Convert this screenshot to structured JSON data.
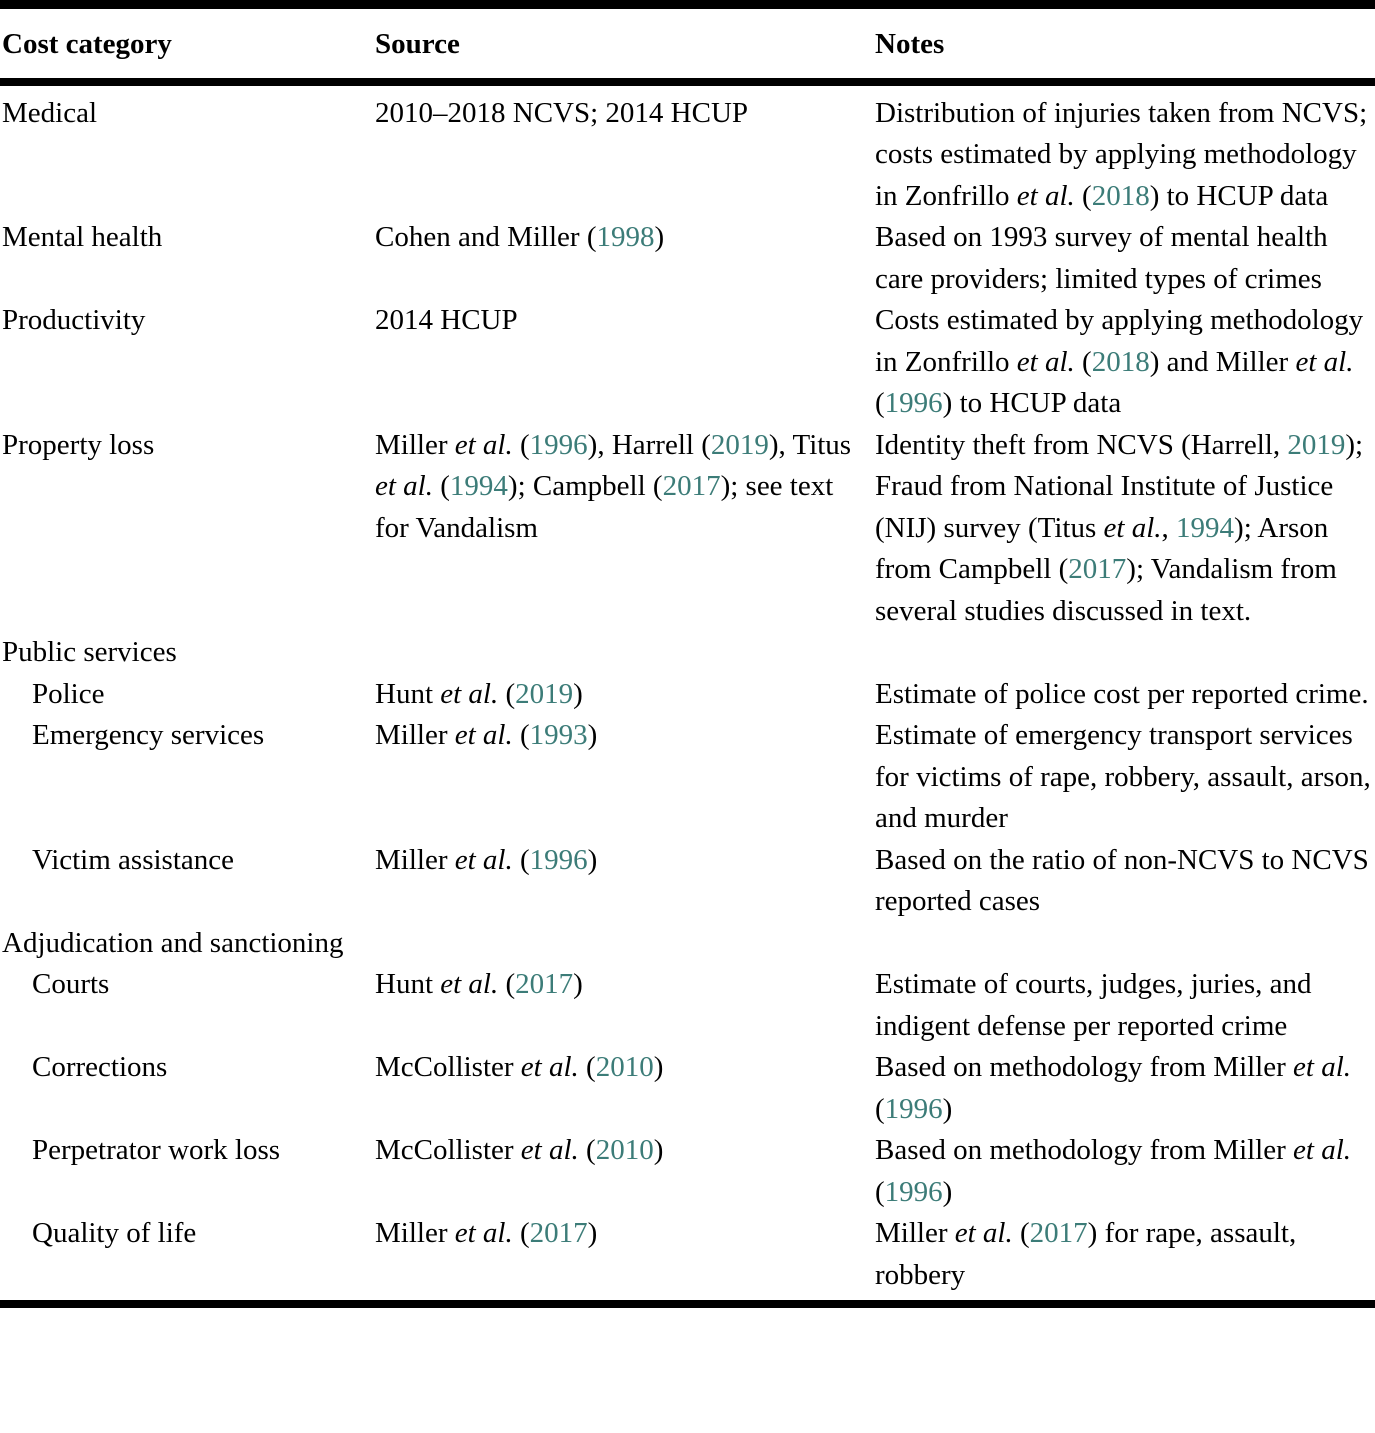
{
  "colors": {
    "citation": "#3c7c78",
    "text": "#000000",
    "rule": "#000000",
    "background": "#ffffff"
  },
  "table": {
    "columns": [
      "Cost category",
      "Source",
      "Notes"
    ],
    "rows": [
      {
        "category": "Medical",
        "indent": false,
        "section": false,
        "source": [
          {
            "t": "2010–2018 NCVS; 2014 HCUP"
          }
        ],
        "notes": [
          {
            "t": "Distribution of injuries taken from NCVS; costs estimated by applying methodology in Zonfrillo "
          },
          {
            "t": "et al.",
            "i": true
          },
          {
            "t": " ("
          },
          {
            "t": "2018",
            "c": true
          },
          {
            "t": ") to HCUP data"
          }
        ]
      },
      {
        "category": "Mental health",
        "indent": false,
        "section": false,
        "source": [
          {
            "t": "Cohen and Miller ("
          },
          {
            "t": "1998",
            "c": true
          },
          {
            "t": ")"
          }
        ],
        "notes": [
          {
            "t": "Based on 1993 survey of mental health care providers; limited types of crimes"
          }
        ]
      },
      {
        "category": "Productivity",
        "indent": false,
        "section": false,
        "source": [
          {
            "t": "2014 HCUP"
          }
        ],
        "notes": [
          {
            "t": "Costs estimated by applying methodology in Zonfrillo "
          },
          {
            "t": "et al.",
            "i": true
          },
          {
            "t": " ("
          },
          {
            "t": "2018",
            "c": true
          },
          {
            "t": ") and Miller "
          },
          {
            "t": "et al.",
            "i": true
          },
          {
            "t": " ("
          },
          {
            "t": "1996",
            "c": true
          },
          {
            "t": ") to HCUP data"
          }
        ]
      },
      {
        "category": "Property loss",
        "indent": false,
        "section": false,
        "source": [
          {
            "t": "Miller "
          },
          {
            "t": "et al.",
            "i": true
          },
          {
            "t": " ("
          },
          {
            "t": "1996",
            "c": true
          },
          {
            "t": "), Harrell ("
          },
          {
            "t": "2019",
            "c": true
          },
          {
            "t": "), Titus "
          },
          {
            "t": "et al.",
            "i": true
          },
          {
            "t": " ("
          },
          {
            "t": "1994",
            "c": true
          },
          {
            "t": "); Campbell ("
          },
          {
            "t": "2017",
            "c": true
          },
          {
            "t": "); see text for Vandalism"
          }
        ],
        "notes": [
          {
            "t": "Identity theft from NCVS (Harrell, "
          },
          {
            "t": "2019",
            "c": true
          },
          {
            "t": "); Fraud from National Institute of Justice (NIJ) survey (Titus "
          },
          {
            "t": "et al.",
            "i": true
          },
          {
            "t": ", "
          },
          {
            "t": "1994",
            "c": true
          },
          {
            "t": "); Arson from Campbell ("
          },
          {
            "t": "2017",
            "c": true
          },
          {
            "t": "); Vandalism from several studies discussed in text."
          }
        ]
      },
      {
        "category": "Public services",
        "indent": false,
        "section": true,
        "source": [],
        "notes": []
      },
      {
        "category": "Police",
        "indent": true,
        "section": false,
        "source": [
          {
            "t": "Hunt "
          },
          {
            "t": "et al.",
            "i": true
          },
          {
            "t": " ("
          },
          {
            "t": "2019",
            "c": true
          },
          {
            "t": ")"
          }
        ],
        "notes": [
          {
            "t": "Estimate of police cost per reported crime."
          }
        ]
      },
      {
        "category": "Emergency services",
        "indent": true,
        "section": false,
        "source": [
          {
            "t": "Miller "
          },
          {
            "t": "et al.",
            "i": true
          },
          {
            "t": " ("
          },
          {
            "t": "1993",
            "c": true
          },
          {
            "t": ")"
          }
        ],
        "notes": [
          {
            "t": "Estimate of emergency transport services for victims of rape, robbery, assault, arson, and murder"
          }
        ]
      },
      {
        "category": "Victim assistance",
        "indent": true,
        "section": false,
        "source": [
          {
            "t": "Miller "
          },
          {
            "t": "et al.",
            "i": true
          },
          {
            "t": " ("
          },
          {
            "t": "1996",
            "c": true
          },
          {
            "t": ")"
          }
        ],
        "notes": [
          {
            "t": "Based on the ratio of non-NCVS to NCVS reported cases"
          }
        ]
      },
      {
        "category": "Adjudication and sanctioning",
        "indent": false,
        "section": true,
        "source": [],
        "notes": []
      },
      {
        "category": "Courts",
        "indent": true,
        "section": false,
        "source": [
          {
            "t": "Hunt "
          },
          {
            "t": "et al.",
            "i": true
          },
          {
            "t": " ("
          },
          {
            "t": "2017",
            "c": true
          },
          {
            "t": ")"
          }
        ],
        "notes": [
          {
            "t": "Estimate of courts, judges, juries, and indigent defense per reported crime"
          }
        ]
      },
      {
        "category": "Corrections",
        "indent": true,
        "section": false,
        "source": [
          {
            "t": "McCollister "
          },
          {
            "t": "et al.",
            "i": true
          },
          {
            "t": " ("
          },
          {
            "t": "2010",
            "c": true
          },
          {
            "t": ")"
          }
        ],
        "notes": [
          {
            "t": "Based on methodology from Miller "
          },
          {
            "t": "et al.",
            "i": true
          },
          {
            "t": " ("
          },
          {
            "t": "1996",
            "c": true
          },
          {
            "t": ")"
          }
        ]
      },
      {
        "category": "Perpetrator work loss",
        "indent": true,
        "section": false,
        "source": [
          {
            "t": "McCollister "
          },
          {
            "t": "et al.",
            "i": true
          },
          {
            "t": " ("
          },
          {
            "t": "2010",
            "c": true
          },
          {
            "t": ")"
          }
        ],
        "notes": [
          {
            "t": "Based on methodology from Miller "
          },
          {
            "t": "et al.",
            "i": true
          },
          {
            "t": " ("
          },
          {
            "t": "1996",
            "c": true
          },
          {
            "t": ")"
          }
        ]
      },
      {
        "category": "Quality of life",
        "indent": true,
        "section": false,
        "source": [
          {
            "t": "Miller "
          },
          {
            "t": "et al.",
            "i": true
          },
          {
            "t": " ("
          },
          {
            "t": "2017",
            "c": true
          },
          {
            "t": ")"
          }
        ],
        "notes": [
          {
            "t": "Miller "
          },
          {
            "t": "et al.",
            "i": true
          },
          {
            "t": " ("
          },
          {
            "t": "2017",
            "c": true
          },
          {
            "t": ") for rape, assault, robbery"
          }
        ]
      }
    ]
  }
}
